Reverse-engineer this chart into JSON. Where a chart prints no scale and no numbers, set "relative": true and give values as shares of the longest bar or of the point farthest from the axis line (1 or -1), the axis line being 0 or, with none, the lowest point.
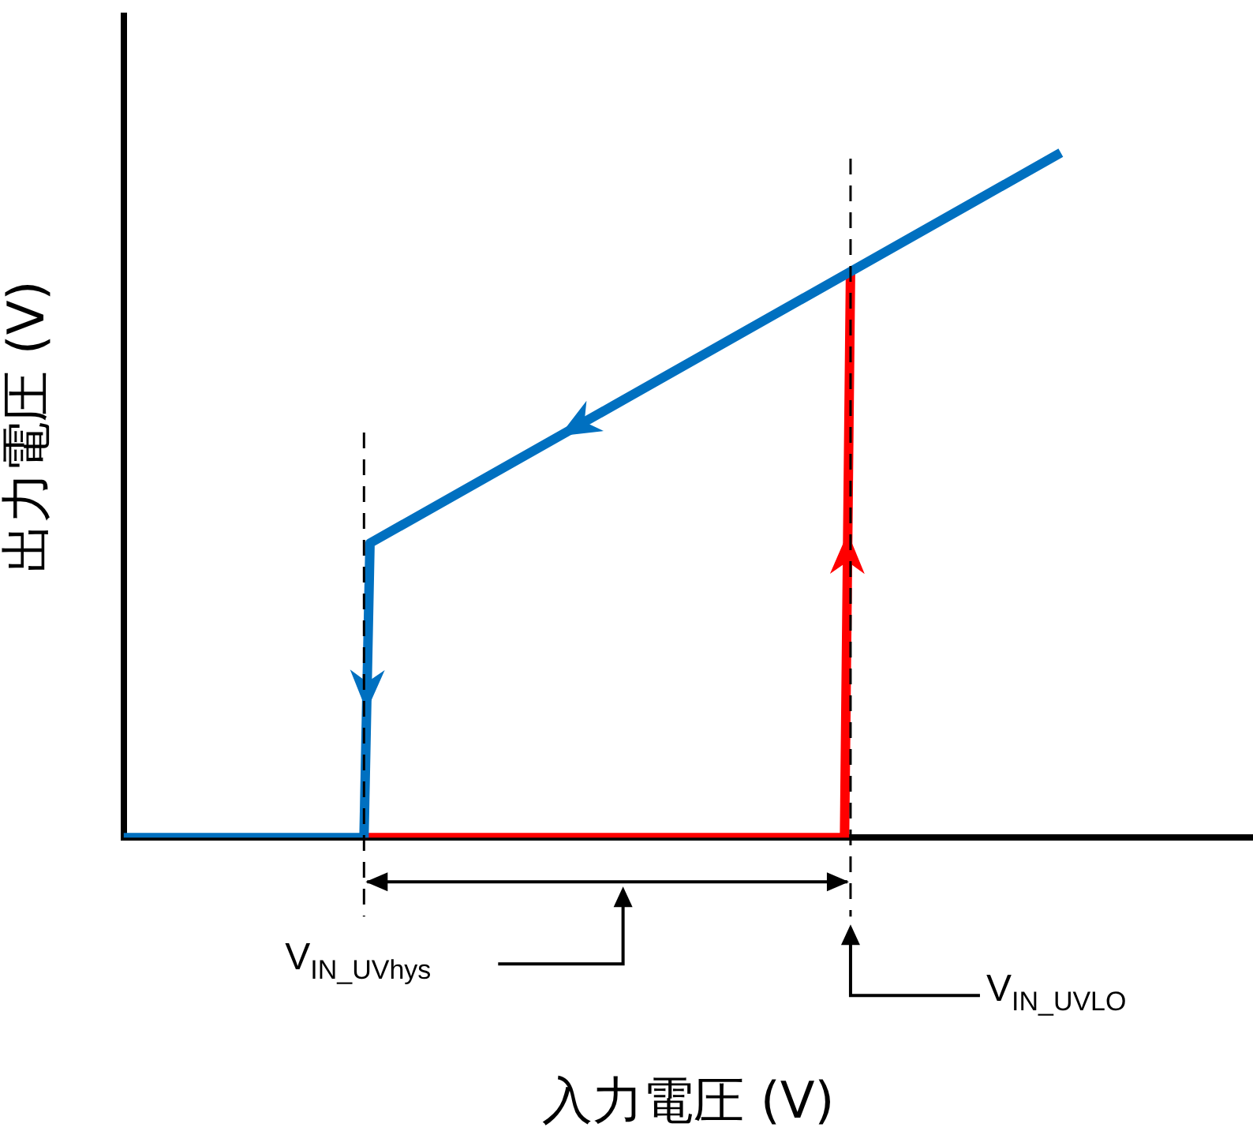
{
  "chart_data": {
    "type": "line",
    "xlabel": "入力電圧 (V)",
    "ylabel": "出力電圧 (V)",
    "relative": true,
    "tick_labels": false,
    "grid": false,
    "legend": false,
    "marker": "none",
    "line_style": "solid",
    "categories": [
      null,
      null,
      null,
      null,
      null,
      null,
      null,
      null,
      null,
      null,
      null,
      null,
      null,
      null,
      null,
      null,
      null,
      null,
      null,
      null,
      null,
      null,
      null,
      null,
      null,
      null,
      null,
      null,
      null,
      null,
      null,
      null,
      null,
      null,
      null,
      null,
      null,
      null,
      null,
      null,
      null,
      null,
      null,
      null,
      null,
      null,
      null,
      null,
      null,
      null,
      null,
      null,
      null,
      null,
      null,
      null,
      null,
      null,
      null,
      null,
      null,
      null,
      null,
      null,
      null,
      null,
      null,
      null,
      null,
      null,
      null,
      null,
      null,
      null,
      null,
      null,
      null,
      null,
      null,
      null,
      null,
      null,
      null,
      null,
      null,
      null,
      null,
      null,
      null,
      null,
      null,
      null,
      null,
      null,
      null,
      null,
      null,
      null,
      null,
      null,
      null,
      null,
      null,
      null,
      null,
      null,
      null,
      null,
      null,
      null,
      null,
      null,
      null,
      null,
      null,
      null,
      null,
      null,
      null,
      null,
      null,
      null,
      null,
      null,
      null,
      null,
      null,
      null,
      null,
      null,
      null,
      null,
      null,
      null,
      null,
      null,
      null,
      null,
      null,
      null,
      null,
      null,
      null,
      null,
      null,
      null,
      null,
      null,
      null,
      null,
      null,
      null,
      null,
      null,
      null,
      null,
      null,
      null,
      null,
      null,
      null,
      null,
      null,
      null,
      null,
      null,
      null,
      null,
      null,
      null,
      null,
      null,
      null,
      null,
      null,
      null,
      null,
      null,
      null,
      null,
      null,
      null,
      null,
      null,
      null,
      null,
      null,
      null,
      null
    ],
    "series": [
      {
        "color": "#0070c0",
        "values": [
          0,
          null,
          null,
          null,
          null,
          null,
          null,
          null,
          null,
          null,
          null,
          null,
          null,
          null,
          null,
          null,
          null,
          null,
          null,
          null,
          null,
          null,
          null,
          null,
          null,
          null,
          null,
          null,
          null,
          null,
          null,
          null,
          null,
          null,
          null,
          null,
          null,
          null,
          null,
          null,
          0,
          0.43,
          null,
          null,
          null,
          null,
          null,
          null,
          null,
          null,
          null,
          null,
          null,
          null,
          null,
          null,
          null,
          null,
          null,
          null,
          null,
          null,
          null,
          null,
          null,
          null,
          null,
          null,
          null,
          null,
          null,
          null,
          null,
          null,
          null,
          null,
          null,
          null,
          null,
          null,
          null,
          null,
          null,
          null,
          null,
          null,
          null,
          null,
          null,
          null,
          null,
          null,
          null,
          null,
          null,
          null,
          null,
          null,
          null,
          null,
          null,
          null,
          null,
          null,
          null,
          null,
          null,
          null,
          null,
          null,
          null,
          null,
          null,
          null,
          null,
          null,
          null,
          null,
          null,
          null,
          null,
          null,
          null,
          null,
          null,
          null,
          null,
          null,
          null,
          null,
          null,
          null,
          null,
          null,
          null,
          null,
          null,
          null,
          null,
          null,
          null,
          null,
          null,
          null,
          null,
          null,
          null,
          null,
          null,
          null,
          null,
          null,
          null,
          null,
          null,
          null,
          1,
          null,
          null,
          null,
          null,
          null,
          null,
          null,
          null,
          null,
          null,
          null,
          null,
          null,
          null,
          null,
          null,
          null,
          null,
          null,
          null,
          null,
          null,
          null,
          null,
          null,
          null,
          null,
          null,
          null,
          null,
          null,
          null
        ]
      },
      {
        "color": "#ff0000",
        "values": [
          null,
          null,
          null,
          null,
          null,
          null,
          null,
          null,
          null,
          null,
          null,
          null,
          null,
          null,
          null,
          null,
          null,
          null,
          null,
          null,
          null,
          null,
          null,
          null,
          null,
          null,
          null,
          null,
          null,
          null,
          null,
          null,
          null,
          null,
          null,
          null,
          null,
          null,
          null,
          null,
          0,
          null,
          null,
          null,
          null,
          null,
          null,
          null,
          null,
          null,
          null,
          null,
          null,
          null,
          null,
          null,
          null,
          null,
          null,
          null,
          null,
          null,
          null,
          null,
          null,
          null,
          null,
          null,
          null,
          null,
          null,
          null,
          null,
          null,
          null,
          null,
          null,
          null,
          null,
          null,
          null,
          null,
          null,
          null,
          null,
          null,
          null,
          null,
          null,
          null,
          null,
          null,
          null,
          null,
          null,
          null,
          null,
          null,
          null,
          null,
          null,
          null,
          null,
          null,
          null,
          null,
          null,
          null,
          null,
          null,
          null,
          null,
          null,
          null,
          null,
          null,
          null,
          null,
          null,
          null,
          0,
          0.83,
          null,
          null,
          null,
          null,
          null,
          null,
          null,
          null,
          null,
          null,
          null,
          null,
          null,
          null,
          null,
          null,
          null,
          null,
          null,
          null,
          null,
          null,
          null,
          null,
          null,
          null,
          null,
          null,
          null,
          null,
          null,
          null,
          null,
          null,
          null,
          null,
          null,
          null,
          null,
          null,
          null,
          null,
          null,
          null,
          null,
          null,
          null,
          null,
          null,
          null,
          null,
          null,
          null,
          null,
          null,
          null,
          null,
          null,
          null,
          null,
          null,
          null,
          null,
          null,
          null,
          null,
          null
        ]
      }
    ],
    "annotations": [
      "V$_{IN_UVhys}$",
      "V$_{IN_UVLO}$"
    ]
  }
}
